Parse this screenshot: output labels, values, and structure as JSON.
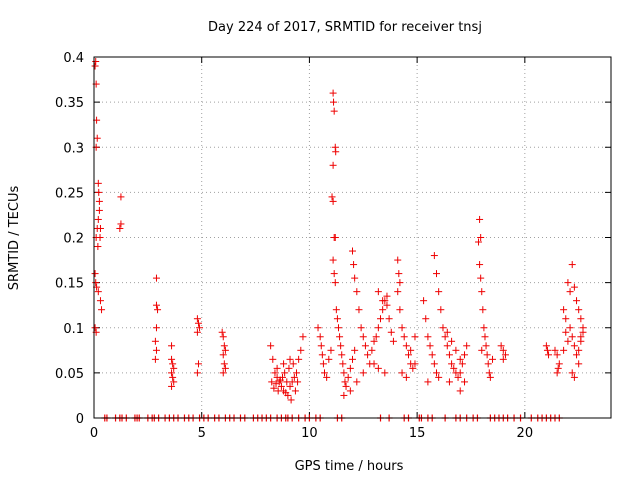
{
  "chart_data": {
    "type": "scatter",
    "title": "Day 224 of 2017, SRMTID for receiver tnsj",
    "xlabel": "GPS time / hours",
    "ylabel": "SRMTID / TECUs",
    "xlim": [
      0,
      24
    ],
    "ylim": [
      0,
      0.4
    ],
    "xticks": [
      0,
      5,
      10,
      15,
      20
    ],
    "yticks": [
      0,
      0.05,
      0.1,
      0.15,
      0.2,
      0.25,
      0.3,
      0.35,
      0.4
    ],
    "grid": true,
    "marker": "plus",
    "color": "#ee0000",
    "series": [
      {
        "name": "SRMTID",
        "points": [
          [
            0.05,
            0.39
          ],
          [
            0.08,
            0.395
          ],
          [
            0.1,
            0.37
          ],
          [
            0.12,
            0.33
          ],
          [
            0.1,
            0.3
          ],
          [
            0.15,
            0.31
          ],
          [
            0.2,
            0.26
          ],
          [
            0.22,
            0.25
          ],
          [
            0.25,
            0.24
          ],
          [
            0.2,
            0.22
          ],
          [
            0.15,
            0.21
          ],
          [
            0.1,
            0.2
          ],
          [
            0.18,
            0.19
          ],
          [
            0.25,
            0.23
          ],
          [
            0.05,
            0.16
          ],
          [
            0.08,
            0.15
          ],
          [
            0.12,
            0.145
          ],
          [
            0.2,
            0.14
          ],
          [
            0.3,
            0.13
          ],
          [
            0.35,
            0.12
          ],
          [
            0.05,
            0.1
          ],
          [
            0.1,
            0.095
          ],
          [
            0.3,
            0.21
          ],
          [
            0.28,
            0.2
          ],
          [
            1.25,
            0.245
          ],
          [
            1.25,
            0.215
          ],
          [
            1.2,
            0.21
          ],
          [
            2.9,
            0.155
          ],
          [
            2.9,
            0.125
          ],
          [
            2.95,
            0.12
          ],
          [
            2.9,
            0.1
          ],
          [
            2.85,
            0.085
          ],
          [
            2.9,
            0.075
          ],
          [
            2.85,
            0.065
          ],
          [
            3.6,
            0.08
          ],
          [
            3.6,
            0.065
          ],
          [
            3.65,
            0.06
          ],
          [
            3.7,
            0.055
          ],
          [
            3.6,
            0.05
          ],
          [
            3.65,
            0.045
          ],
          [
            3.7,
            0.04
          ],
          [
            3.6,
            0.035
          ],
          [
            4.8,
            0.11
          ],
          [
            4.85,
            0.105
          ],
          [
            4.9,
            0.1
          ],
          [
            4.8,
            0.095
          ],
          [
            4.85,
            0.06
          ],
          [
            4.8,
            0.05
          ],
          [
            5.95,
            0.095
          ],
          [
            6.0,
            0.09
          ],
          [
            6.05,
            0.08
          ],
          [
            6.1,
            0.075
          ],
          [
            6.0,
            0.07
          ],
          [
            6.05,
            0.06
          ],
          [
            6.1,
            0.055
          ],
          [
            6.0,
            0.05
          ],
          [
            8.2,
            0.08
          ],
          [
            8.3,
            0.065
          ],
          [
            8.4,
            0.05
          ],
          [
            8.5,
            0.045
          ],
          [
            8.6,
            0.04
          ],
          [
            8.7,
            0.035
          ],
          [
            8.8,
            0.03
          ],
          [
            8.9,
            0.028
          ],
          [
            9.0,
            0.025
          ],
          [
            9.1,
            0.035
          ],
          [
            9.2,
            0.04
          ],
          [
            9.3,
            0.045
          ],
          [
            9.4,
            0.05
          ],
          [
            9.5,
            0.065
          ],
          [
            9.6,
            0.075
          ],
          [
            9.7,
            0.09
          ],
          [
            8.25,
            0.04
          ],
          [
            8.45,
            0.038
          ],
          [
            8.65,
            0.042
          ],
          [
            8.85,
            0.05
          ],
          [
            9.05,
            0.055
          ],
          [
            9.25,
            0.06
          ],
          [
            9.45,
            0.04
          ],
          [
            8.35,
            0.033
          ],
          [
            8.55,
            0.03
          ],
          [
            8.75,
            0.045
          ],
          [
            8.95,
            0.04
          ],
          [
            9.15,
            0.02
          ],
          [
            9.35,
            0.03
          ],
          [
            8.5,
            0.055
          ],
          [
            8.8,
            0.06
          ],
          [
            9.1,
            0.065
          ],
          [
            10.4,
            0.1
          ],
          [
            10.5,
            0.09
          ],
          [
            10.55,
            0.08
          ],
          [
            10.6,
            0.07
          ],
          [
            10.65,
            0.06
          ],
          [
            10.7,
            0.05
          ],
          [
            10.8,
            0.045
          ],
          [
            10.9,
            0.065
          ],
          [
            11.0,
            0.075
          ],
          [
            11.1,
            0.36
          ],
          [
            11.12,
            0.35
          ],
          [
            11.15,
            0.34
          ],
          [
            11.2,
            0.3
          ],
          [
            11.22,
            0.295
          ],
          [
            11.1,
            0.28
          ],
          [
            11.05,
            0.245
          ],
          [
            11.1,
            0.24
          ],
          [
            11.15,
            0.2
          ],
          [
            11.2,
            0.2
          ],
          [
            11.1,
            0.175
          ],
          [
            11.15,
            0.16
          ],
          [
            11.2,
            0.15
          ],
          [
            11.25,
            0.12
          ],
          [
            11.3,
            0.11
          ],
          [
            11.35,
            0.1
          ],
          [
            11.4,
            0.09
          ],
          [
            11.45,
            0.08
          ],
          [
            11.5,
            0.07
          ],
          [
            11.55,
            0.06
          ],
          [
            11.6,
            0.05
          ],
          [
            11.65,
            0.04
          ],
          [
            11.7,
            0.035
          ],
          [
            11.8,
            0.045
          ],
          [
            11.9,
            0.055
          ],
          [
            12.0,
            0.065
          ],
          [
            12.1,
            0.075
          ],
          [
            12.0,
            0.185
          ],
          [
            12.05,
            0.17
          ],
          [
            12.1,
            0.155
          ],
          [
            12.2,
            0.14
          ],
          [
            12.3,
            0.12
          ],
          [
            12.4,
            0.1
          ],
          [
            12.5,
            0.09
          ],
          [
            12.6,
            0.08
          ],
          [
            12.7,
            0.07
          ],
          [
            12.8,
            0.06
          ],
          [
            12.9,
            0.075
          ],
          [
            13.0,
            0.085
          ],
          [
            13.1,
            0.09
          ],
          [
            13.2,
            0.1
          ],
          [
            13.3,
            0.11
          ],
          [
            13.4,
            0.12
          ],
          [
            13.5,
            0.13
          ],
          [
            13.6,
            0.135
          ],
          [
            13.7,
            0.11
          ],
          [
            13.8,
            0.095
          ],
          [
            13.9,
            0.085
          ],
          [
            13.2,
            0.14
          ],
          [
            13.4,
            0.13
          ],
          [
            13.6,
            0.125
          ],
          [
            13.0,
            0.06
          ],
          [
            13.2,
            0.055
          ],
          [
            13.5,
            0.05
          ],
          [
            12.5,
            0.05
          ],
          [
            12.2,
            0.04
          ],
          [
            11.9,
            0.03
          ],
          [
            11.6,
            0.025
          ],
          [
            14.1,
            0.175
          ],
          [
            14.15,
            0.16
          ],
          [
            14.2,
            0.15
          ],
          [
            14.1,
            0.14
          ],
          [
            14.2,
            0.12
          ],
          [
            14.3,
            0.1
          ],
          [
            14.4,
            0.09
          ],
          [
            14.5,
            0.08
          ],
          [
            14.6,
            0.07
          ],
          [
            14.7,
            0.06
          ],
          [
            14.8,
            0.055
          ],
          [
            14.9,
            0.06
          ],
          [
            14.3,
            0.05
          ],
          [
            14.5,
            0.045
          ],
          [
            14.7,
            0.075
          ],
          [
            14.9,
            0.09
          ],
          [
            15.3,
            0.13
          ],
          [
            15.4,
            0.11
          ],
          [
            15.5,
            0.09
          ],
          [
            15.6,
            0.08
          ],
          [
            15.7,
            0.07
          ],
          [
            15.8,
            0.06
          ],
          [
            15.9,
            0.05
          ],
          [
            16.0,
            0.045
          ],
          [
            15.8,
            0.18
          ],
          [
            15.9,
            0.16
          ],
          [
            16.0,
            0.14
          ],
          [
            16.1,
            0.12
          ],
          [
            16.2,
            0.1
          ],
          [
            16.3,
            0.09
          ],
          [
            16.4,
            0.08
          ],
          [
            16.5,
            0.07
          ],
          [
            16.6,
            0.06
          ],
          [
            16.7,
            0.055
          ],
          [
            16.8,
            0.05
          ],
          [
            16.9,
            0.045
          ],
          [
            17.0,
            0.05
          ],
          [
            17.1,
            0.06
          ],
          [
            17.2,
            0.07
          ],
          [
            17.3,
            0.08
          ],
          [
            16.4,
            0.095
          ],
          [
            16.6,
            0.085
          ],
          [
            16.8,
            0.075
          ],
          [
            17.0,
            0.065
          ],
          [
            17.2,
            0.04
          ],
          [
            17.0,
            0.03
          ],
          [
            16.5,
            0.04
          ],
          [
            15.5,
            0.04
          ],
          [
            17.9,
            0.22
          ],
          [
            17.95,
            0.2
          ],
          [
            17.85,
            0.195
          ],
          [
            17.9,
            0.17
          ],
          [
            17.95,
            0.155
          ],
          [
            18.0,
            0.14
          ],
          [
            18.05,
            0.12
          ],
          [
            18.1,
            0.1
          ],
          [
            18.15,
            0.09
          ],
          [
            18.2,
            0.08
          ],
          [
            18.25,
            0.07
          ],
          [
            18.3,
            0.06
          ],
          [
            18.35,
            0.05
          ],
          [
            18.4,
            0.045
          ],
          [
            18.5,
            0.065
          ],
          [
            18.0,
            0.075
          ],
          [
            18.9,
            0.08
          ],
          [
            19.0,
            0.075
          ],
          [
            19.1,
            0.07
          ],
          [
            19.0,
            0.065
          ],
          [
            21.0,
            0.08
          ],
          [
            21.05,
            0.075
          ],
          [
            21.1,
            0.07
          ],
          [
            21.4,
            0.075
          ],
          [
            21.5,
            0.07
          ],
          [
            21.6,
            0.06
          ],
          [
            21.55,
            0.055
          ],
          [
            21.5,
            0.05
          ],
          [
            21.8,
            0.12
          ],
          [
            21.9,
            0.11
          ],
          [
            22.0,
            0.15
          ],
          [
            22.1,
            0.14
          ],
          [
            22.2,
            0.17
          ],
          [
            22.3,
            0.145
          ],
          [
            22.4,
            0.13
          ],
          [
            22.5,
            0.12
          ],
          [
            22.6,
            0.11
          ],
          [
            22.7,
            0.1
          ],
          [
            22.2,
            0.09
          ],
          [
            22.3,
            0.08
          ],
          [
            22.4,
            0.07
          ],
          [
            22.5,
            0.06
          ],
          [
            22.6,
            0.09
          ],
          [
            22.1,
            0.1
          ],
          [
            22.0,
            0.085
          ],
          [
            21.9,
            0.095
          ],
          [
            21.8,
            0.075
          ],
          [
            22.2,
            0.05
          ],
          [
            22.3,
            0.045
          ],
          [
            22.5,
            0.075
          ],
          [
            22.6,
            0.085
          ],
          [
            22.7,
            0.095
          ]
        ]
      }
    ],
    "zero_points_x": [
      0.5,
      0.6,
      1.0,
      1.2,
      1.3,
      1.5,
      1.9,
      2.0,
      2.1,
      2.5,
      2.7,
      2.8,
      3.0,
      3.3,
      3.5,
      3.7,
      3.9,
      4.2,
      4.4,
      4.6,
      4.9,
      5.1,
      5.3,
      5.6,
      5.8,
      6.1,
      6.3,
      6.5,
      6.8,
      7.0,
      7.4,
      7.6,
      7.8,
      8.0,
      8.2,
      8.5,
      8.7,
      8.9,
      9.0,
      9.2,
      9.5,
      9.8,
      10.0,
      10.3,
      10.5,
      11.3,
      11.5,
      13.3,
      13.7,
      14.4,
      14.6,
      15.1,
      15.2,
      15.5,
      15.7,
      16.3,
      16.8,
      17.0,
      17.3,
      17.6,
      17.8,
      18.4,
      18.6,
      18.8,
      19.0,
      19.2,
      19.5,
      19.8,
      20.3,
      20.6,
      20.8,
      21.0,
      21.2,
      21.4,
      21.6
    ]
  }
}
